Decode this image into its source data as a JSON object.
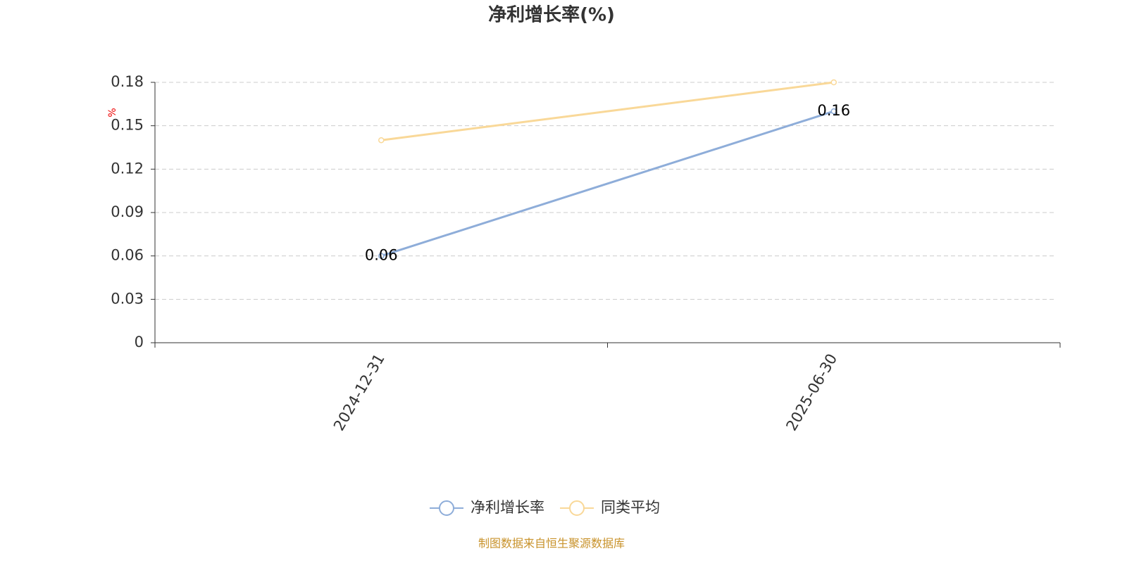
{
  "chart_data": {
    "type": "line",
    "title": "净利增长率(%)",
    "y_label": "%",
    "categories": [
      "2024-12-31",
      "2025-06-30"
    ],
    "series": [
      {
        "name": "净利增长率",
        "color": "#8eadd9",
        "values": [
          0.06,
          0.16
        ],
        "data_labels": true
      },
      {
        "name": "同类平均",
        "color": "#f9d898",
        "values": [
          0.14,
          0.18
        ],
        "data_labels": false
      }
    ],
    "ylim": [
      0,
      0.18
    ],
    "yticks": [
      0,
      0.03,
      0.06,
      0.09,
      0.12,
      0.15,
      0.18
    ],
    "grid": true,
    "legend": "bottom",
    "source": "制图数据来自恒生聚源数据库"
  }
}
